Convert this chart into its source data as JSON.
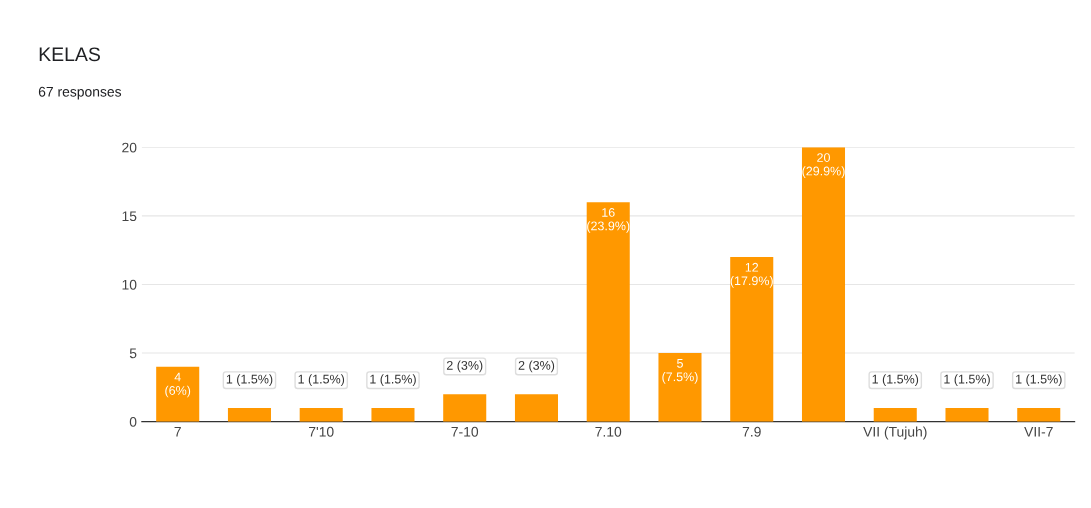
{
  "chart_data": {
    "type": "bar",
    "title": "KELAS",
    "subtitle": "67 responses",
    "categories": [
      "7",
      null,
      "7'10",
      null,
      "7-10",
      null,
      "7.10",
      null,
      "7.9",
      null,
      "VII (Tujuh)",
      null,
      "VII-7"
    ],
    "values": [
      4,
      1,
      1,
      1,
      2,
      2,
      16,
      5,
      12,
      20,
      1,
      1,
      1
    ],
    "value_labels": [
      "4 (6%)",
      "1 (1.5%)",
      "1 (1.5%)",
      "1 (1.5%)",
      "2 (3%)",
      "2 (3%)",
      "16 (23.9%)",
      "5 (7.5%)",
      "12 (17.9%)",
      "20 (29.9%)",
      "1 (1.5%)",
      "1 (1.5%)",
      "1 (1.5%)"
    ],
    "color": "#ff9800",
    "ylim": [
      0,
      20
    ],
    "yticks": [
      0,
      5,
      10,
      15,
      20
    ],
    "grid": "y"
  }
}
